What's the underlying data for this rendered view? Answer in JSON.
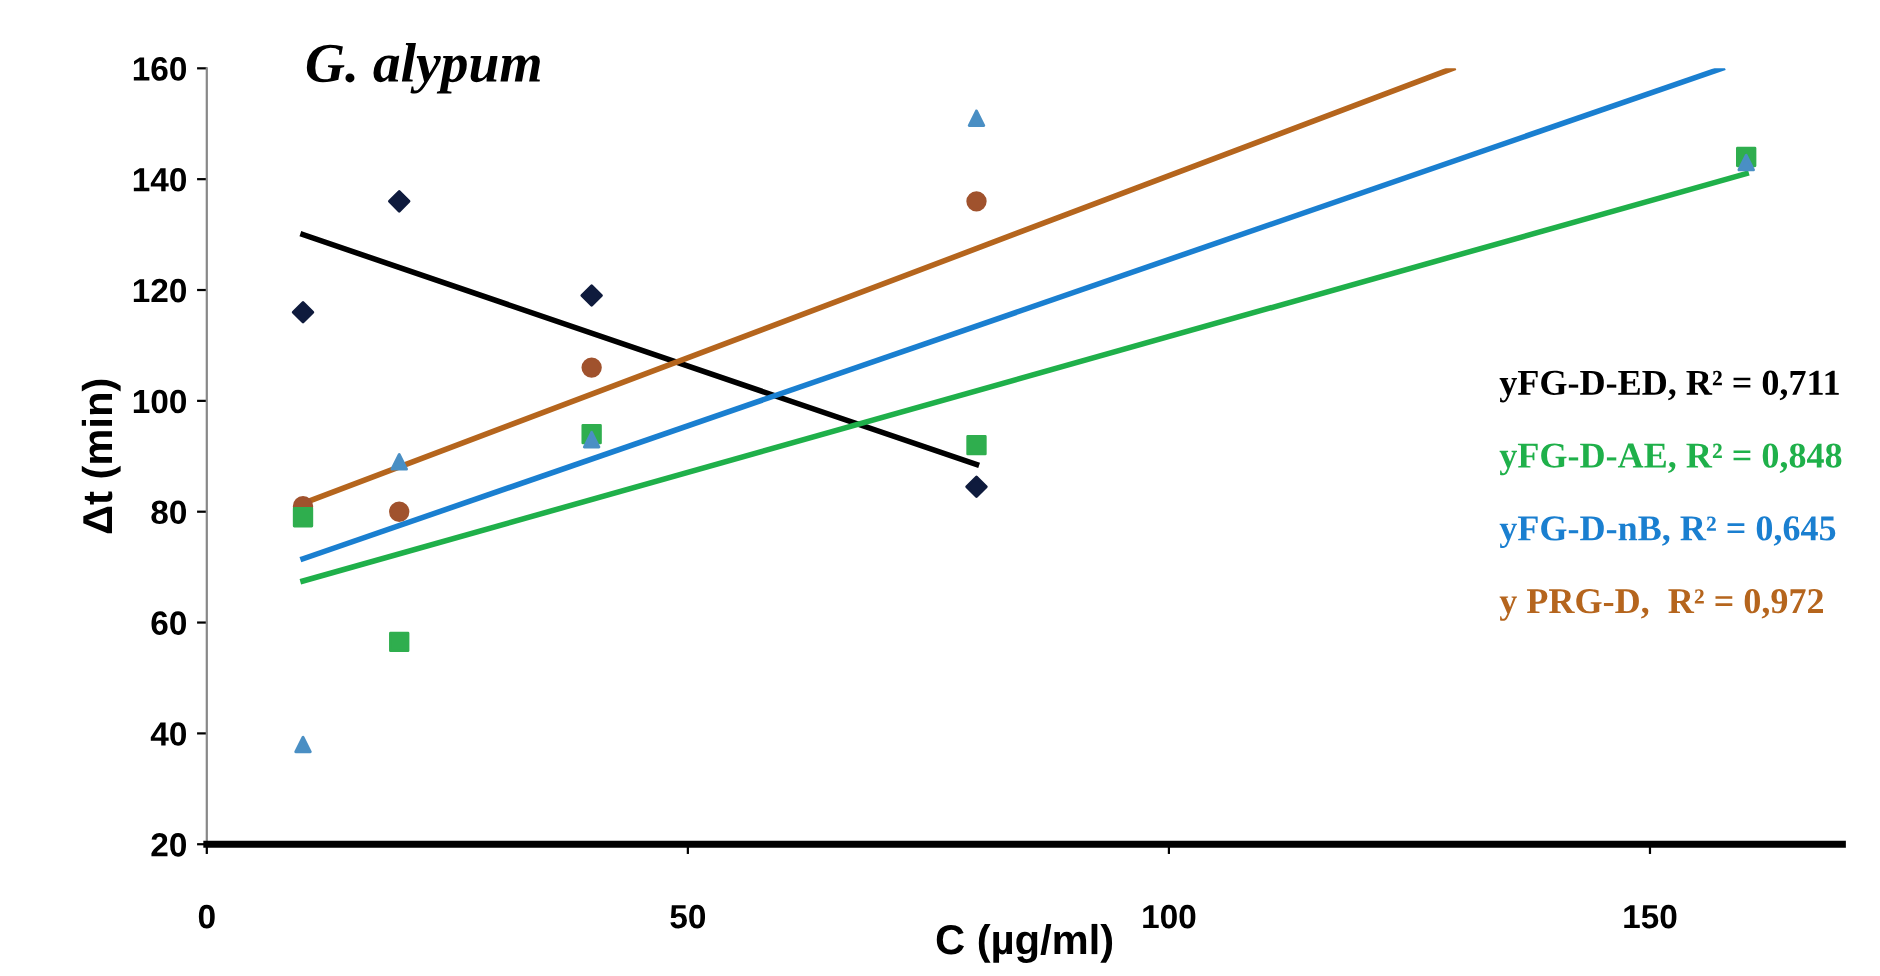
{
  "chart_data": {
    "type": "scatter",
    "title": "G. alypum",
    "xlabel": "C (µg/ml)",
    "ylabel": "Δt (min)",
    "xlim": [
      0,
      170
    ],
    "xticks": [
      0,
      50,
      100,
      150
    ],
    "ylim": [
      20,
      160
    ],
    "yticks": [
      20,
      40,
      60,
      80,
      100,
      120,
      140,
      160
    ],
    "grid": false,
    "legend": "right",
    "series": [
      {
        "marker": "diamond",
        "color": "#0f1b3d",
        "x": [
          10,
          20,
          40,
          80
        ],
        "values": [
          116,
          136,
          119,
          84.5
        ]
      },
      {
        "marker": "circle",
        "color": "#a0522d",
        "x": [
          10,
          20,
          40,
          80
        ],
        "values": [
          81,
          80,
          106,
          136
        ]
      },
      {
        "marker": "triangle",
        "color": "#4a8fc4",
        "x": [
          10,
          20,
          40,
          80,
          160
        ],
        "values": [
          38,
          89,
          93,
          151,
          143
        ]
      },
      {
        "marker": "square",
        "color": "#2fae4e",
        "x": [
          10,
          20,
          40,
          80,
          160
        ],
        "values": [
          79,
          56.5,
          94,
          92,
          144
        ]
      },
      {
        "type": "line",
        "name": "yFG-D-ED, R² = 0,711",
        "color": "#000000",
        "x": [
          10,
          80
        ],
        "values": [
          130,
          88.5
        ]
      },
      {
        "type": "line",
        "name": "yFG-D-AE, R² = 0,848",
        "color": "#1fb04a",
        "x": [
          10,
          160
        ],
        "values": [
          67.5,
          141
        ]
      },
      {
        "type": "line",
        "name": "yFG-D-nB, R² = 0,645",
        "color": "#1a7fd0",
        "x": [
          10,
          157.5
        ],
        "values": [
          71.5,
          160
        ]
      },
      {
        "type": "line",
        "name": "y PRG-D,  R² = 0,972",
        "color": "#b5651d",
        "x": [
          10,
          129.5
        ],
        "values": [
          81.5,
          160
        ]
      }
    ]
  }
}
